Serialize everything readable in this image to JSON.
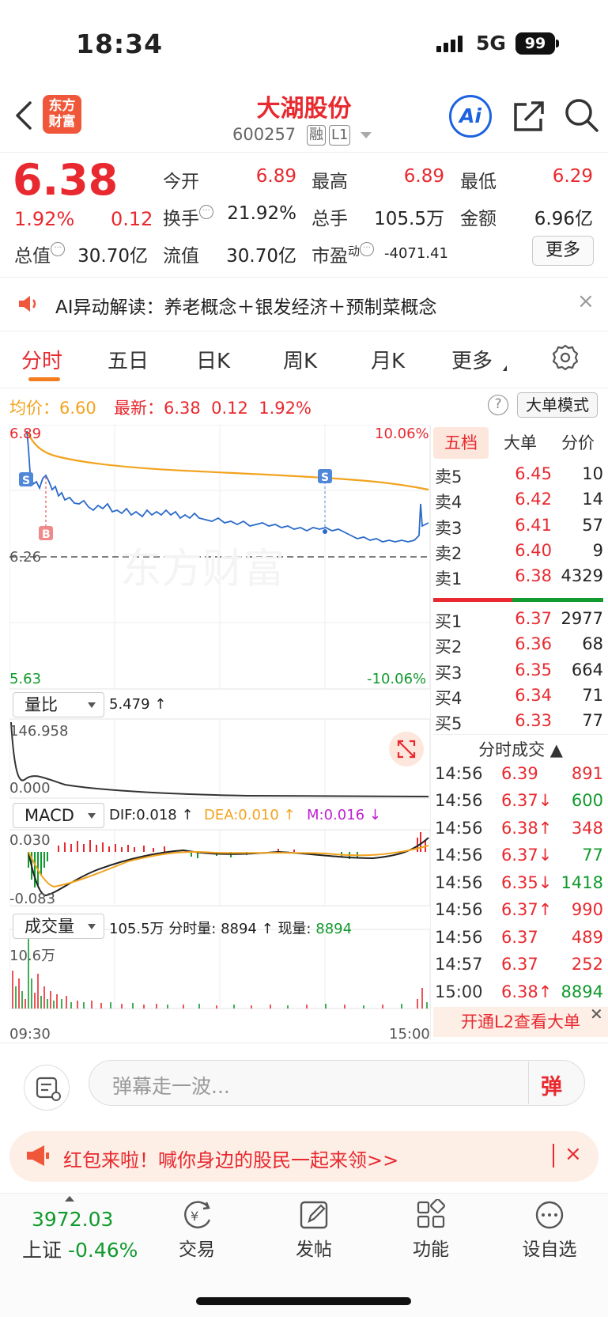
{
  "status_bar": {
    "time": "18:34",
    "network": "5G",
    "battery": "99"
  },
  "header": {
    "logo_line1": "东方",
    "logo_line2": "财富",
    "stock_name": "大湖股份",
    "stock_code": "600257",
    "tag_margin": "融",
    "tag_level": "L1",
    "ai_label": "Ai"
  },
  "quote": {
    "price": "6.38",
    "change_pct": "1.92%",
    "change": "0.12",
    "open_label": "今开",
    "open": "6.89",
    "high_label": "最高",
    "high": "6.89",
    "low_label": "最低",
    "low": "6.29",
    "turnover_label": "换手",
    "turnover": "21.92%",
    "volume_label": "总手",
    "volume": "105.5万",
    "amount_label": "金额",
    "amount": "6.96亿",
    "mktcap_label": "总值",
    "mktcap": "30.70亿",
    "float_label": "流值",
    "float": "30.70亿",
    "pe_label": "市盈",
    "pe_sup": "动",
    "pe": "-4071.41",
    "more_label": "更多"
  },
  "ai_notice": {
    "text": "AI异动解读：养老概念＋银发经济＋预制菜概念",
    "close": "×"
  },
  "tabs": [
    "分时",
    "五日",
    "日K",
    "周K",
    "月K",
    "更多"
  ],
  "chart_header": {
    "avg_label": "均价：",
    "avg": "6.60",
    "latest_label": "最新：",
    "latest": "6.38",
    "latest_chg": "0.12",
    "latest_pct": "1.92%",
    "help": "?",
    "big_order_mode": "大单模式"
  },
  "chart_labels": {
    "price_top": "6.89",
    "price_mid": "6.26",
    "price_bottom": "5.63",
    "pct_top": "10.06%",
    "pct_bottom": "-10.06%",
    "marker_s": "S",
    "marker_b": "B",
    "watermark": "东方财富"
  },
  "indicators": {
    "vr_label": "量比",
    "vr_value": "5.479 ↑",
    "vr_top": "146.958",
    "vr_bottom": "0.000",
    "macd_label": "MACD",
    "dif": "DIF:0.018 ↑",
    "dea": "DEA:0.010 ↑",
    "m": "M:0.016 ↓",
    "macd_top": "0.030",
    "macd_bottom": "-0.083",
    "vol_label": "成交量",
    "vol_total": "105.5万",
    "vol_interval_label": "分时量:",
    "vol_interval": "8894 ↑",
    "vol_now_label": "现量:",
    "vol_now": "8894",
    "vol_top": "10.6万",
    "time_start": "09:30",
    "time_end": "15:00"
  },
  "order_book": {
    "tabs": [
      "五档",
      "大单",
      "分价"
    ],
    "asks": [
      {
        "label": "卖5",
        "price": "6.45",
        "vol": "10"
      },
      {
        "label": "卖4",
        "price": "6.42",
        "vol": "14"
      },
      {
        "label": "卖3",
        "price": "6.41",
        "vol": "57"
      },
      {
        "label": "卖2",
        "price": "6.40",
        "vol": "9"
      },
      {
        "label": "卖1",
        "price": "6.38",
        "vol": "4329"
      }
    ],
    "bids": [
      {
        "label": "买1",
        "price": "6.37",
        "vol": "2977"
      },
      {
        "label": "买2",
        "price": "6.36",
        "vol": "68"
      },
      {
        "label": "买3",
        "price": "6.35",
        "vol": "664"
      },
      {
        "label": "买4",
        "price": "6.34",
        "vol": "71"
      },
      {
        "label": "买5",
        "price": "6.33",
        "vol": "77"
      }
    ]
  },
  "trades": {
    "header": "分时成交 ▲",
    "rows": [
      {
        "time": "14:56",
        "price": "6.39",
        "vol": "891",
        "dir": "buy"
      },
      {
        "time": "14:56",
        "price": "6.37↓",
        "vol": "600",
        "dir": "sell"
      },
      {
        "time": "14:56",
        "price": "6.38↑",
        "vol": "348",
        "dir": "buy"
      },
      {
        "time": "14:56",
        "price": "6.37↓",
        "vol": "77",
        "dir": "sell"
      },
      {
        "time": "14:56",
        "price": "6.35↓",
        "vol": "1418",
        "dir": "sell"
      },
      {
        "time": "14:56",
        "price": "6.37↑",
        "vol": "990",
        "dir": "buy"
      },
      {
        "time": "14:56",
        "price": "6.37",
        "vol": "489",
        "dir": "buy"
      },
      {
        "time": "14:57",
        "price": "6.37",
        "vol": "252",
        "dir": "buy"
      },
      {
        "time": "15:00",
        "price": "6.38↑",
        "vol": "8894",
        "dir": "sell"
      }
    ],
    "l2_banner": "开通L2查看大单"
  },
  "comment": {
    "placeholder": "弹幕走一波...",
    "danmu": "弹"
  },
  "red_packet": {
    "text": "红包来啦！喊你身边的股民一起来领>>",
    "close": "×"
  },
  "bottom_nav": {
    "index_value": "3972.03",
    "index_name": "上证",
    "index_pct": "-0.46%",
    "items": [
      "交易",
      "发帖",
      "功能",
      "设自选"
    ]
  },
  "colors": {
    "up": "#e8292f",
    "down": "#119a2d",
    "avg_line": "#f2a31e",
    "price_line": "#2a6ac9",
    "accent": "#f27c1e"
  }
}
